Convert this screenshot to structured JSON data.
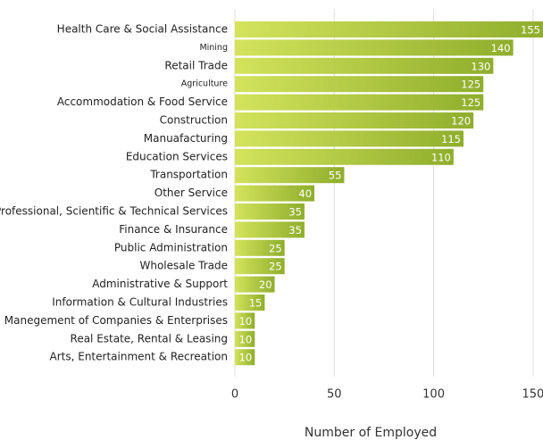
{
  "chart_data": {
    "type": "bar",
    "orientation": "horizontal",
    "categories": [
      "Health Care & Social Assistance",
      "Mining",
      "Retail Trade",
      "Agriculture",
      "Accommodation & Food Service",
      "Construction",
      "Manuafacturing",
      "Education Services",
      "Transportation",
      "Other Service",
      "Professional, Scientific & Technical Services",
      "Finance & Insurance",
      "Public Administration",
      "Wholesale Trade",
      "Administrative & Support",
      "Information & Cultural Industries",
      "Manegement of Companies & Enterprises",
      "Real Estate, Rental & Leasing",
      "Arts, Entertainment & Recreation"
    ],
    "values": [
      155,
      140,
      130,
      125,
      125,
      120,
      115,
      110,
      55,
      40,
      35,
      35,
      25,
      25,
      20,
      15,
      10,
      10,
      10
    ],
    "color": "#8fae2c",
    "xlabel": "Number of Employed",
    "xlim": [
      0,
      155
    ],
    "xticks": [
      0,
      50,
      100,
      150
    ],
    "grid": true
  }
}
